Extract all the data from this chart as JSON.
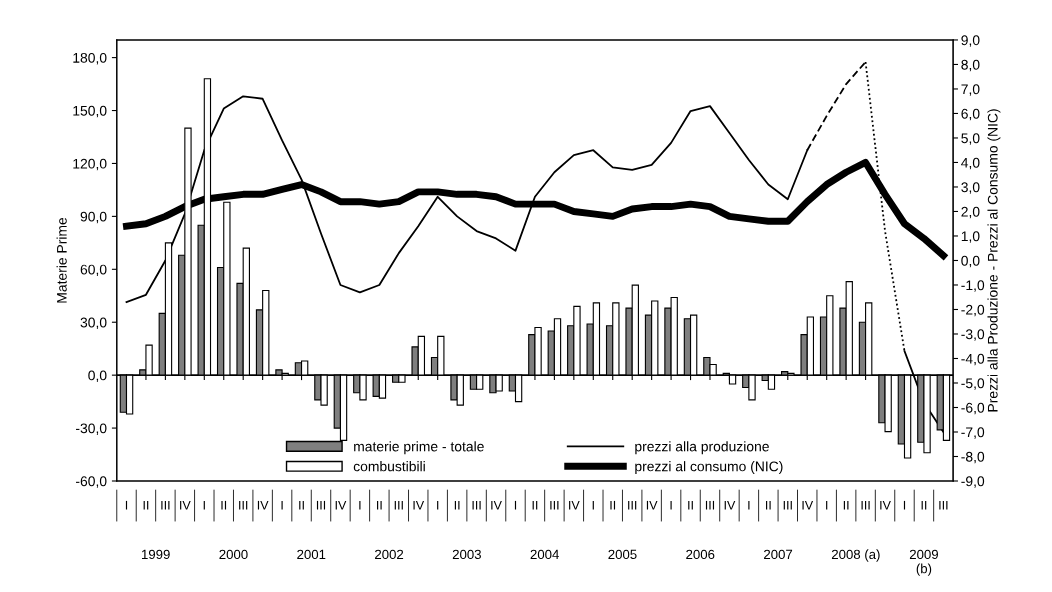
{
  "chart_data": {
    "type": "bar",
    "categories": [
      "I",
      "II",
      "III",
      "IV",
      "I",
      "II",
      "III",
      "IV",
      "I",
      "II",
      "III",
      "IV",
      "I",
      "II",
      "III",
      "IV",
      "I",
      "II",
      "III",
      "IV",
      "I",
      "II",
      "III",
      "IV",
      "I",
      "II",
      "III",
      "IV",
      "I",
      "II",
      "III",
      "IV",
      "I",
      "II",
      "III",
      "IV",
      "I",
      "II",
      "III",
      "IV",
      "I",
      "II",
      "III"
    ],
    "annotations": [
      "1999",
      "2000",
      "2001",
      "2002",
      "2003",
      "2004",
      "2005",
      "2006",
      "2007",
      "2008 (a)",
      "2009\n(b)"
    ],
    "ylabel": "Materie Prime",
    "y2label": "Prezzi alla Produzione - Prezzi al Consumo (NIC)",
    "ylim": [
      -60,
      190
    ],
    "yticks": [
      {
        "value": -60,
        "label": "-60,0"
      },
      {
        "value": -30,
        "label": "-30,0"
      },
      {
        "value": 0,
        "label": "0,0"
      },
      {
        "value": 30,
        "label": "30,0"
      },
      {
        "value": 60,
        "label": "60,0"
      },
      {
        "value": 90,
        "label": "90,0"
      },
      {
        "value": 120,
        "label": "120,0"
      },
      {
        "value": 150,
        "label": "150,0"
      },
      {
        "value": 180,
        "label": "180,0"
      }
    ],
    "y2lim": [
      -9,
      9
    ],
    "y2ticks": [
      {
        "value": -9,
        "label": "-9,0"
      },
      {
        "value": -8,
        "label": "-8,0"
      },
      {
        "value": -7,
        "label": "-7,0"
      },
      {
        "value": -6,
        "label": "-6,0"
      },
      {
        "value": -5,
        "label": "-5,0"
      },
      {
        "value": -4,
        "label": "-4,0"
      },
      {
        "value": -3,
        "label": "-3,0"
      },
      {
        "value": -2,
        "label": "-2,0"
      },
      {
        "value": -1,
        "label": "-1,0"
      },
      {
        "value": 0,
        "label": "0,0"
      },
      {
        "value": 1,
        "label": "1,0"
      },
      {
        "value": 2,
        "label": "2,0"
      },
      {
        "value": 3,
        "label": "3,0"
      },
      {
        "value": 4,
        "label": "4,0"
      },
      {
        "value": 5,
        "label": "5,0"
      },
      {
        "value": 6,
        "label": "6,0"
      },
      {
        "value": 7,
        "label": "7,0"
      },
      {
        "value": 8,
        "label": "8,0"
      },
      {
        "value": 9,
        "label": "9,0"
      }
    ],
    "grid": false,
    "legend": "bottom",
    "ref_lines": [
      {
        "axis": "y",
        "value": 0,
        "color": "#000000"
      }
    ],
    "series": [
      {
        "name": "materie prime - totale",
        "color": "#7f7f7f",
        "values": [
          -21,
          3,
          35,
          68,
          85,
          61,
          52,
          37,
          3,
          7,
          -14,
          -30,
          -10,
          -12,
          -4,
          16,
          10,
          -14,
          -8,
          -10,
          -9,
          23,
          25,
          28,
          29,
          28,
          38,
          34,
          38,
          32,
          10,
          1,
          -7,
          -3,
          2,
          23,
          33,
          38,
          30,
          -27,
          -39,
          -38,
          -31
        ]
      },
      {
        "name": "combustibili",
        "color": "#ffffff",
        "values": [
          -22,
          17,
          75,
          140,
          168,
          98,
          72,
          48,
          1,
          8,
          -17,
          -37,
          -14,
          -13,
          -4,
          22,
          22,
          -17,
          -8,
          -9,
          -15,
          27,
          32,
          39,
          41,
          41,
          51,
          42,
          44,
          34,
          6,
          -5,
          -14,
          -8,
          1,
          33,
          45,
          53,
          41,
          -32,
          -47,
          -44,
          -37
        ]
      },
      {
        "name": "prezzi alla produzione",
        "type": "line",
        "axis": "y2",
        "color": "#000000",
        "line_style": "solid",
        "values": [
          -1.7,
          -1.4,
          0.0,
          1.9,
          4.5,
          6.2,
          6.7,
          6.6,
          4.9,
          3.3,
          1.1,
          -1.0,
          -1.3,
          -1.0,
          0.3,
          1.4,
          2.6,
          1.8,
          1.2,
          0.9,
          0.4,
          2.6,
          3.6,
          4.3,
          4.5,
          3.8,
          3.7,
          3.9,
          4.8,
          6.1,
          6.3,
          5.2,
          4.1,
          3.1,
          2.5,
          4.5,
          null,
          null,
          null,
          null,
          -3.7,
          -5.8,
          -7.0
        ]
      },
      {
        "name": "prezzi al consumo (NIC)",
        "type": "line",
        "axis": "y2",
        "color": "#000000",
        "line_style": "solid",
        "values": [
          1.4,
          1.5,
          1.8,
          2.2,
          2.5,
          2.6,
          2.7,
          2.7,
          2.9,
          3.1,
          2.8,
          2.4,
          2.4,
          2.3,
          2.4,
          2.8,
          2.8,
          2.7,
          2.7,
          2.6,
          2.3,
          2.3,
          2.3,
          2.0,
          1.9,
          1.8,
          2.1,
          2.2,
          2.2,
          2.3,
          2.2,
          1.8,
          1.7,
          1.6,
          1.6,
          2.4,
          3.1,
          3.6,
          4.0,
          2.7,
          1.5,
          0.9,
          0.2
        ]
      },
      {
        "type": "line",
        "axis": "y2",
        "color": "#000000",
        "line_style": "dashed",
        "values": [
          null,
          null,
          null,
          null,
          null,
          null,
          null,
          null,
          null,
          null,
          null,
          null,
          null,
          null,
          null,
          null,
          null,
          null,
          null,
          null,
          null,
          null,
          null,
          null,
          null,
          null,
          null,
          null,
          null,
          null,
          null,
          null,
          null,
          null,
          null,
          4.5,
          5.9,
          7.2,
          8.1,
          null,
          null,
          null,
          null
        ]
      },
      {
        "type": "line",
        "axis": "y2",
        "color": "#000000",
        "line_style": "dotted",
        "values": [
          null,
          null,
          null,
          null,
          null,
          null,
          null,
          null,
          null,
          null,
          null,
          null,
          null,
          null,
          null,
          null,
          null,
          null,
          null,
          null,
          null,
          null,
          null,
          null,
          null,
          null,
          null,
          null,
          null,
          null,
          null,
          null,
          null,
          null,
          null,
          null,
          null,
          null,
          8.1,
          1.2,
          -3.7,
          null,
          null
        ]
      }
    ]
  }
}
